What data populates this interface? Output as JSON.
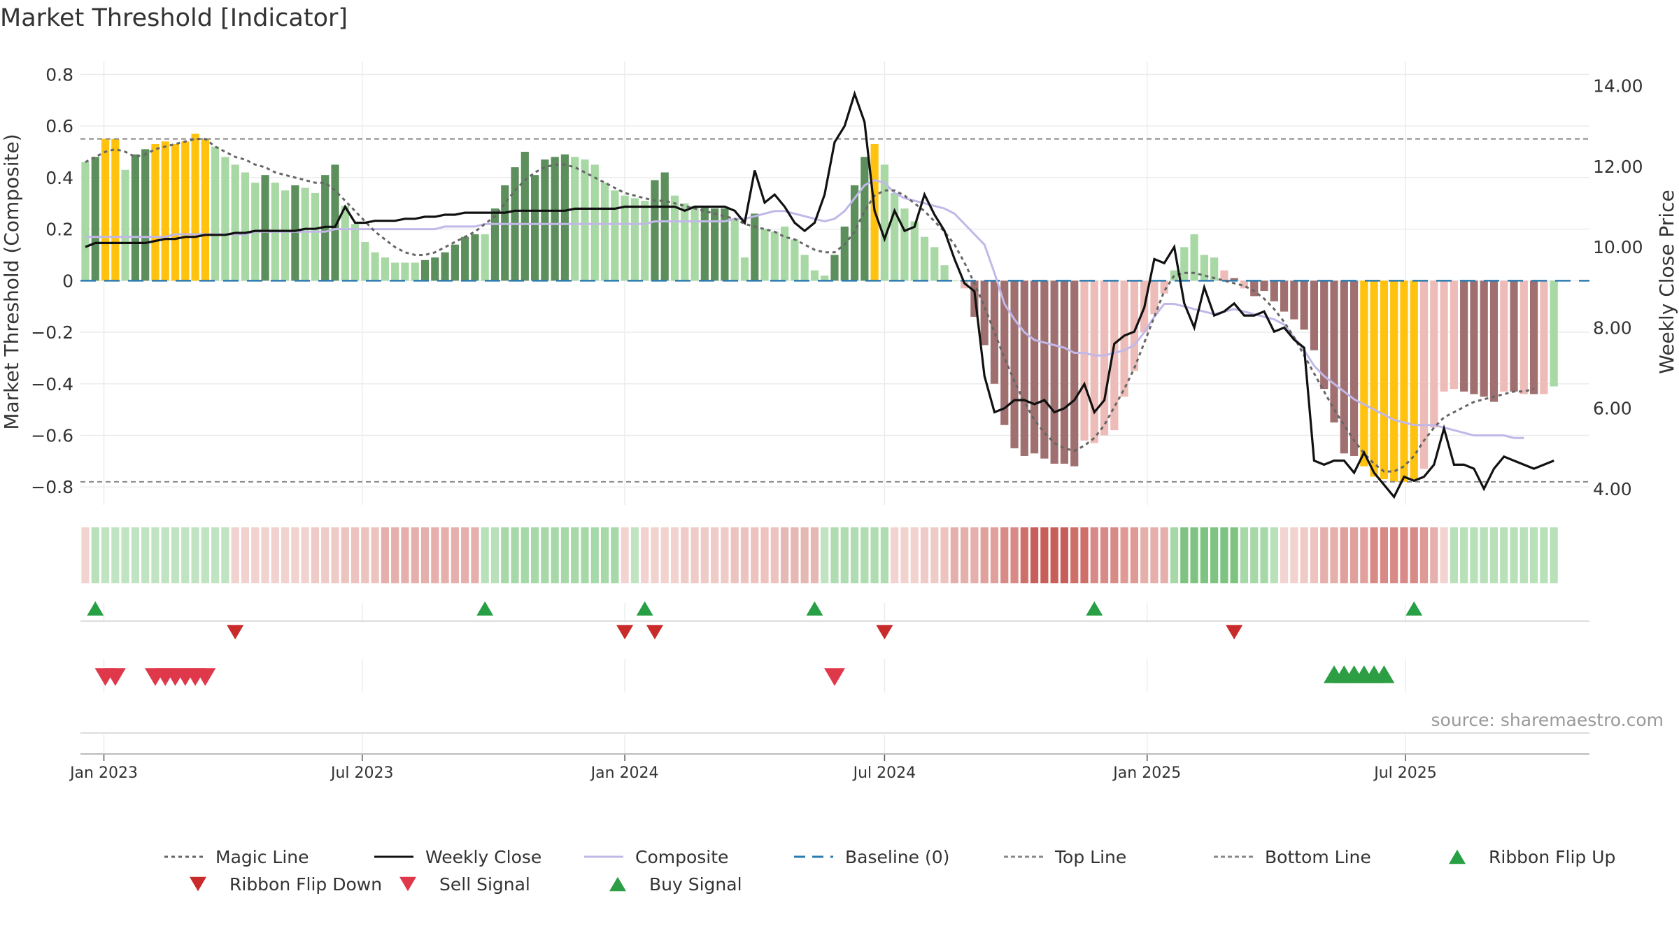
{
  "chart_data": {
    "type": "bar",
    "title": "Market Threshold [Indicator]",
    "ylabel_left": "Market Threshold (Composite)",
    "ylabel_right": "Weekly Close Price",
    "source": "source: sharemaestro.com",
    "ylim_left": [
      -0.87,
      0.85
    ],
    "ylim_right": [
      3.6,
      14.6
    ],
    "yticks_left": [
      "0.8",
      "0.6",
      "0.4",
      "0.2",
      "0",
      "−0.2",
      "−0.4",
      "−0.6",
      "−0.8"
    ],
    "yticks_right": [
      "14.00",
      "12.00",
      "10.00",
      "8.00",
      "6.00",
      "4.00"
    ],
    "x_ticks": [
      "Jan 2023",
      "Jul 2023",
      "Jan 2024",
      "Jul 2024",
      "Jan 2025",
      "Jul 2025"
    ],
    "x_start": "2022-12-19",
    "top_line": 0.55,
    "bottom_line": -0.78,
    "bars": [
      0.46,
      0.48,
      0.55,
      0.55,
      0.43,
      0.49,
      0.51,
      0.53,
      0.54,
      0.53,
      0.54,
      0.57,
      0.55,
      0.52,
      0.48,
      0.45,
      0.42,
      0.38,
      0.41,
      0.38,
      0.35,
      0.37,
      0.36,
      0.34,
      0.41,
      0.45,
      0.29,
      0.22,
      0.15,
      0.11,
      0.09,
      0.07,
      0.07,
      0.07,
      0.08,
      0.09,
      0.11,
      0.14,
      0.17,
      0.18,
      0.18,
      0.28,
      0.37,
      0.44,
      0.5,
      0.41,
      0.47,
      0.48,
      0.49,
      0.48,
      0.47,
      0.45,
      0.38,
      0.35,
      0.33,
      0.32,
      0.31,
      0.39,
      0.42,
      0.33,
      0.3,
      0.29,
      0.29,
      0.28,
      0.28,
      0.24,
      0.09,
      0.26,
      0.2,
      0.19,
      0.21,
      0.16,
      0.1,
      0.04,
      0.02,
      0.1,
      0.21,
      0.37,
      0.48,
      0.53,
      0.45,
      0.34,
      0.28,
      0.23,
      0.17,
      0.13,
      0.06,
      0.0,
      -0.03,
      -0.14,
      -0.25,
      -0.4,
      -0.56,
      -0.65,
      -0.68,
      -0.67,
      -0.69,
      -0.71,
      -0.71,
      -0.72,
      -0.62,
      -0.63,
      -0.6,
      -0.58,
      -0.45,
      -0.35,
      -0.2,
      -0.13,
      -0.05,
      0.04,
      0.13,
      0.18,
      0.1,
      0.09,
      0.04,
      0.01,
      -0.03,
      -0.06,
      -0.04,
      -0.08,
      -0.12,
      -0.15,
      -0.19,
      -0.27,
      -0.42,
      -0.55,
      -0.67,
      -0.68,
      -0.72,
      -0.76,
      -0.77,
      -0.78,
      -0.78,
      -0.77,
      -0.73,
      -0.57,
      -0.43,
      -0.42,
      -0.43,
      -0.44,
      -0.45,
      -0.47,
      -0.43,
      -0.43,
      -0.44,
      -0.44,
      -0.44,
      -0.41
    ],
    "bar_styles": [
      "l",
      "d",
      "g",
      "g",
      "l",
      "d",
      "d",
      "g",
      "g",
      "g",
      "g",
      "g",
      "g",
      "l",
      "l",
      "l",
      "l",
      "l",
      "d",
      "l",
      "l",
      "d",
      "l",
      "l",
      "d",
      "d",
      "l",
      "l",
      "l",
      "l",
      "l",
      "l",
      "l",
      "l",
      "d",
      "d",
      "d",
      "d",
      "d",
      "d",
      "l",
      "d",
      "d",
      "d",
      "d",
      "d",
      "d",
      "d",
      "d",
      "l",
      "l",
      "l",
      "l",
      "l",
      "l",
      "l",
      "l",
      "d",
      "d",
      "l",
      "l",
      "l",
      "d",
      "d",
      "d",
      "l",
      "l",
      "d",
      "l",
      "l",
      "l",
      "l",
      "l",
      "l",
      "l",
      "d",
      "d",
      "d",
      "d",
      "g",
      "l",
      "l",
      "l",
      "l",
      "l",
      "l",
      "l",
      "l",
      "pl",
      "d2",
      "d2",
      "d2",
      "d2",
      "d2",
      "d2",
      "d2",
      "d2",
      "d2",
      "d2",
      "d2",
      "pl",
      "pl",
      "pl",
      "pl",
      "pl",
      "pl",
      "pl",
      "pl",
      "pl",
      "l",
      "l",
      "l",
      "l",
      "l",
      "pl",
      "d2",
      "pl",
      "d2",
      "d2",
      "d2",
      "d2",
      "d2",
      "d2",
      "d2",
      "d2",
      "d2",
      "d2",
      "d2",
      "g",
      "g",
      "g",
      "g",
      "g",
      "g",
      "pl",
      "pl",
      "pl",
      "pl",
      "d2",
      "d2",
      "d2",
      "d2",
      "pl",
      "d2",
      "pl",
      "d2",
      "pl"
    ],
    "bar_style_colors": {
      "l": "#a8d8a4",
      "d": "#5c8f5c",
      "g": "#ffc20e",
      "d2": "#a07070",
      "pl": "#eebcb8"
    },
    "magic_line": [
      0.46,
      0.48,
      0.5,
      0.51,
      0.5,
      0.48,
      0.49,
      0.51,
      0.52,
      0.53,
      0.54,
      0.55,
      0.55,
      0.52,
      0.5,
      0.48,
      0.47,
      0.45,
      0.44,
      0.42,
      0.41,
      0.4,
      0.39,
      0.38,
      0.38,
      0.35,
      0.31,
      0.27,
      0.23,
      0.19,
      0.16,
      0.13,
      0.11,
      0.1,
      0.1,
      0.11,
      0.13,
      0.15,
      0.17,
      0.19,
      0.22,
      0.25,
      0.3,
      0.35,
      0.39,
      0.42,
      0.44,
      0.45,
      0.45,
      0.44,
      0.42,
      0.4,
      0.38,
      0.36,
      0.34,
      0.33,
      0.32,
      0.31,
      0.31,
      0.3,
      0.29,
      0.28,
      0.27,
      0.26,
      0.25,
      0.24,
      0.22,
      0.21,
      0.2,
      0.19,
      0.17,
      0.16,
      0.14,
      0.12,
      0.11,
      0.11,
      0.14,
      0.19,
      0.27,
      0.33,
      0.35,
      0.35,
      0.33,
      0.3,
      0.27,
      0.23,
      0.19,
      0.14,
      0.07,
      -0.01,
      -0.1,
      -0.2,
      -0.3,
      -0.39,
      -0.47,
      -0.54,
      -0.59,
      -0.63,
      -0.65,
      -0.66,
      -0.64,
      -0.61,
      -0.56,
      -0.49,
      -0.42,
      -0.34,
      -0.24,
      -0.14,
      -0.04,
      0.02,
      0.03,
      0.03,
      0.02,
      0.01,
      0.0,
      -0.01,
      -0.02,
      -0.04,
      -0.07,
      -0.11,
      -0.16,
      -0.22,
      -0.29,
      -0.36,
      -0.43,
      -0.5,
      -0.56,
      -0.62,
      -0.67,
      -0.71,
      -0.74,
      -0.74,
      -0.72,
      -0.68,
      -0.62,
      -0.57,
      -0.53,
      -0.51,
      -0.49,
      -0.47,
      -0.46,
      -0.45,
      -0.44,
      -0.43,
      -0.43,
      -0.42
    ],
    "composite": [
      0.17,
      0.17,
      0.17,
      0.17,
      0.17,
      0.17,
      0.17,
      0.17,
      0.17,
      0.18,
      0.18,
      0.18,
      0.18,
      0.18,
      0.18,
      0.18,
      0.18,
      0.19,
      0.19,
      0.19,
      0.19,
      0.19,
      0.19,
      0.19,
      0.19,
      0.2,
      0.2,
      0.2,
      0.2,
      0.2,
      0.2,
      0.2,
      0.2,
      0.2,
      0.2,
      0.2,
      0.21,
      0.21,
      0.21,
      0.21,
      0.22,
      0.22,
      0.22,
      0.22,
      0.22,
      0.22,
      0.22,
      0.22,
      0.22,
      0.22,
      0.22,
      0.22,
      0.22,
      0.22,
      0.22,
      0.22,
      0.22,
      0.23,
      0.23,
      0.23,
      0.23,
      0.23,
      0.23,
      0.23,
      0.23,
      0.24,
      0.24,
      0.25,
      0.26,
      0.27,
      0.27,
      0.26,
      0.25,
      0.24,
      0.23,
      0.24,
      0.27,
      0.32,
      0.37,
      0.39,
      0.38,
      0.34,
      0.32,
      0.31,
      0.3,
      0.29,
      0.28,
      0.26,
      0.22,
      0.18,
      0.14,
      0.03,
      -0.09,
      -0.15,
      -0.2,
      -0.23,
      -0.24,
      -0.25,
      -0.26,
      -0.28,
      -0.28,
      -0.29,
      -0.29,
      -0.28,
      -0.27,
      -0.25,
      -0.2,
      -0.14,
      -0.09,
      -0.09,
      -0.1,
      -0.11,
      -0.12,
      -0.13,
      -0.12,
      -0.11,
      -0.12,
      -0.13,
      -0.14,
      -0.15,
      -0.17,
      -0.22,
      -0.27,
      -0.33,
      -0.37,
      -0.4,
      -0.43,
      -0.46,
      -0.48,
      -0.5,
      -0.52,
      -0.54,
      -0.55,
      -0.56,
      -0.56,
      -0.56,
      -0.57,
      -0.58,
      -0.59,
      -0.6,
      -0.6,
      -0.6,
      -0.6,
      -0.61,
      -0.61
    ],
    "weekly_close": [
      10.0,
      10.1,
      10.1,
      10.1,
      10.1,
      10.1,
      10.1,
      10.15,
      10.2,
      10.2,
      10.25,
      10.25,
      10.3,
      10.3,
      10.3,
      10.35,
      10.35,
      10.4,
      10.4,
      10.4,
      10.4,
      10.4,
      10.45,
      10.45,
      10.5,
      10.5,
      11.0,
      10.6,
      10.6,
      10.65,
      10.65,
      10.65,
      10.7,
      10.7,
      10.75,
      10.75,
      10.8,
      10.8,
      10.85,
      10.85,
      10.85,
      10.85,
      10.85,
      10.9,
      10.9,
      10.9,
      10.9,
      10.9,
      10.9,
      10.95,
      10.95,
      10.95,
      10.95,
      10.95,
      11.0,
      11.0,
      11.0,
      11.0,
      11.0,
      11.0,
      10.9,
      11.0,
      11.0,
      11.0,
      11.0,
      10.9,
      10.6,
      11.9,
      11.1,
      11.3,
      11.0,
      10.6,
      10.4,
      10.6,
      11.3,
      12.6,
      13.0,
      13.8,
      13.1,
      10.9,
      10.2,
      10.9,
      10.4,
      10.5,
      11.3,
      10.8,
      10.4,
      9.7,
      9.1,
      8.9,
      6.8,
      5.9,
      6.0,
      6.2,
      6.2,
      6.1,
      6.2,
      5.9,
      6.0,
      6.2,
      6.6,
      5.9,
      6.2,
      7.6,
      7.8,
      7.9,
      8.5,
      9.7,
      9.6,
      10.0,
      8.6,
      8.0,
      9.0,
      8.3,
      8.4,
      8.6,
      8.3,
      8.3,
      8.4,
      7.9,
      8.0,
      7.7,
      7.5,
      4.7,
      4.6,
      4.7,
      4.7,
      4.4,
      4.9,
      4.4,
      4.1,
      3.8,
      4.3,
      4.2,
      4.3,
      4.6,
      5.5,
      4.6,
      4.6,
      4.5,
      4.0,
      4.5,
      4.8,
      4.7,
      4.6,
      4.5,
      4.6,
      4.7
    ],
    "ribbon_colors": [
      "#f3d3d0",
      "#b8e0b9",
      "#c0e3c1",
      "#c0e3c1",
      "#c0e3c1",
      "#c0e3c1",
      "#c0e3c1",
      "#c0e3c1",
      "#c0e3c1",
      "#c0e3c1",
      "#c0e3c1",
      "#c0e3c1",
      "#c0e3c1",
      "#c0e3c1",
      "#c0e3c1",
      "#f1d2cf",
      "#f1d2cf",
      "#f1d2cf",
      "#f1d2cf",
      "#f1d2cf",
      "#f1d2cf",
      "#f1d2cf",
      "#f1d2cf",
      "#efcbc8",
      "#efcbc8",
      "#efcbc8",
      "#ecc3bf",
      "#ecc3bf",
      "#ecc3bf",
      "#ecc3bf",
      "#e5b0ac",
      "#e5b0ac",
      "#e5b0ac",
      "#e5b0ac",
      "#e5b0ac",
      "#e5b0ac",
      "#e5b0ac",
      "#e5b0ac",
      "#e5b0ac",
      "#e5b0ac",
      "#b8e0b9",
      "#b8e0b9",
      "#a6d8a8",
      "#a6d8a8",
      "#a6d8a8",
      "#a6d8a8",
      "#a6d8a8",
      "#a6d8a8",
      "#a6d8a8",
      "#a6d8a8",
      "#a6d8a8",
      "#a6d8a8",
      "#a6d8a8",
      "#a6d8a8",
      "#f3d3d0",
      "#c0e3c1",
      "#f1d2cf",
      "#f1d2cf",
      "#f1d2cf",
      "#f1d2cf",
      "#efcbc8",
      "#efcbc8",
      "#efcbc8",
      "#efcbc8",
      "#efcbc8",
      "#ecc3bf",
      "#ecc3bf",
      "#ecc3bf",
      "#ecc3bf",
      "#ecc3bf",
      "#e5b8b4",
      "#e5b8b4",
      "#e5b8b4",
      "#e5b8b4",
      "#c0e3c1",
      "#b0dcb1",
      "#b0dcb1",
      "#b0dcb1",
      "#b0dcb1",
      "#b0dcb1",
      "#b0dcb1",
      "#f3d3d0",
      "#f1d2cf",
      "#f1d2cf",
      "#efcbc8",
      "#efcbc8",
      "#ecc3bf",
      "#e5b0ac",
      "#e5b0ac",
      "#e5b0ac",
      "#e0a09c",
      "#e0a09c",
      "#d88a86",
      "#d88a86",
      "#cf6f6a",
      "#c75e59",
      "#c75e59",
      "#c75e59",
      "#c75e59",
      "#cf6f6a",
      "#cf6f6a",
      "#d88a86",
      "#d88a86",
      "#d88a86",
      "#e09a96",
      "#e09a96",
      "#e5b0ac",
      "#e5b0ac",
      "#e5b0ac",
      "#a6d8a8",
      "#7fc382",
      "#7fc382",
      "#7fc382",
      "#7fc382",
      "#7fc382",
      "#7fc382",
      "#a6d8a8",
      "#a6d8a8",
      "#a6d8a8",
      "#b8e0b9",
      "#f3d3d0",
      "#f1d2cf",
      "#efcbc8",
      "#ecc3bf",
      "#e5b0ac",
      "#e5b0ac",
      "#e0a09c",
      "#e0a09c",
      "#e0a09c",
      "#d88a86",
      "#d88a86",
      "#d88a86",
      "#d88a86",
      "#d88a86",
      "#e09a96",
      "#e5b0ac",
      "#f3d3d0",
      "#b8e0b9",
      "#b8e0b9",
      "#b8e0b9",
      "#b8e0b9",
      "#b8e0b9",
      "#b8e0b9",
      "#b8e0b9",
      "#b8e0b9",
      "#b8e0b9",
      "#b8e0b9",
      "#b8e0b9"
    ],
    "ribbon_flip_up": [
      1,
      40,
      56,
      73,
      101,
      133
    ],
    "ribbon_flip_down": [
      15,
      54,
      57,
      80,
      115
    ],
    "sell_signals": [
      2,
      3,
      7,
      8,
      9,
      10,
      11,
      12,
      75
    ],
    "buy_signals": [
      125,
      126,
      127,
      128,
      129,
      130
    ],
    "legend": [
      "Magic Line",
      "Weekly Close",
      "Composite",
      "Baseline (0)",
      "Top Line",
      "Bottom Line",
      "Ribbon Flip Up",
      "Ribbon Flip Down",
      "Sell Signal",
      "Buy Signal"
    ],
    "colors": {
      "magic_line": "#666666",
      "weekly_close": "#111111",
      "composite": "#c2b8e8",
      "baseline": "#2b7bb0",
      "threshold_lines": "#888888",
      "flip_up": "#27a045",
      "flip_down": "#c92a2a",
      "sell": "#e0384b",
      "buy": "#2e9e45"
    },
    "grid": true,
    "legend_position": "bottom"
  }
}
